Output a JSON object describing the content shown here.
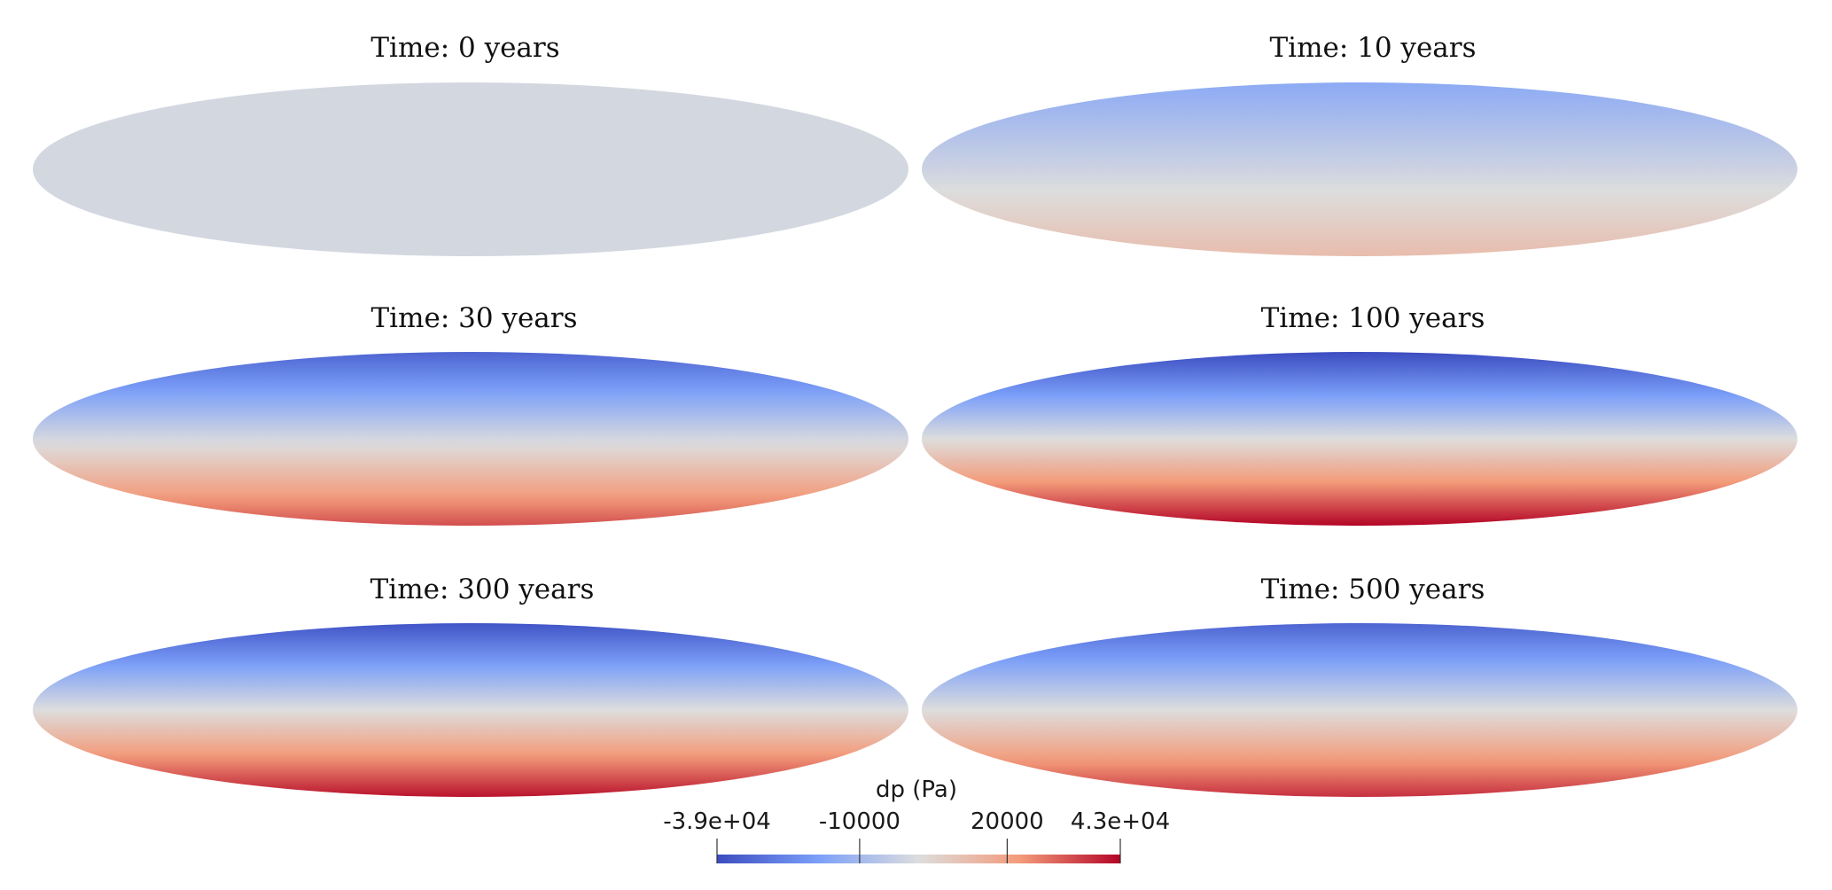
{
  "panels": [
    {
      "title": "Time: 0 years",
      "top_value": 0,
      "bottom_value": 0
    },
    {
      "title": "Time: 10 years",
      "top_value": -15000,
      "bottom_value": 12000
    },
    {
      "title": "Time: 30 years",
      "top_value": -33000,
      "bottom_value": 33000
    },
    {
      "title": "Time: 100 years",
      "top_value": -39000,
      "bottom_value": 43000
    },
    {
      "title": "Time: 300 years",
      "top_value": -37000,
      "bottom_value": 41000
    },
    {
      "title": "Time: 500 years",
      "top_value": -33000,
      "bottom_value": 37000
    }
  ],
  "colorbar": {
    "title": "dp (Pa)",
    "min": -39000,
    "max": 43000,
    "ticks": [
      {
        "value": -39000,
        "label": "-3.9e+04"
      },
      {
        "value": -10000,
        "label": "-10000"
      },
      {
        "value": 20000,
        "label": "20000"
      },
      {
        "value": 43000,
        "label": "4.3e+04"
      }
    ],
    "colormap": "Cool to Warm",
    "colors": [
      "#3b4cc0",
      "#7b9ff9",
      "#dddddd",
      "#f39b7a",
      "#b40426"
    ]
  }
}
